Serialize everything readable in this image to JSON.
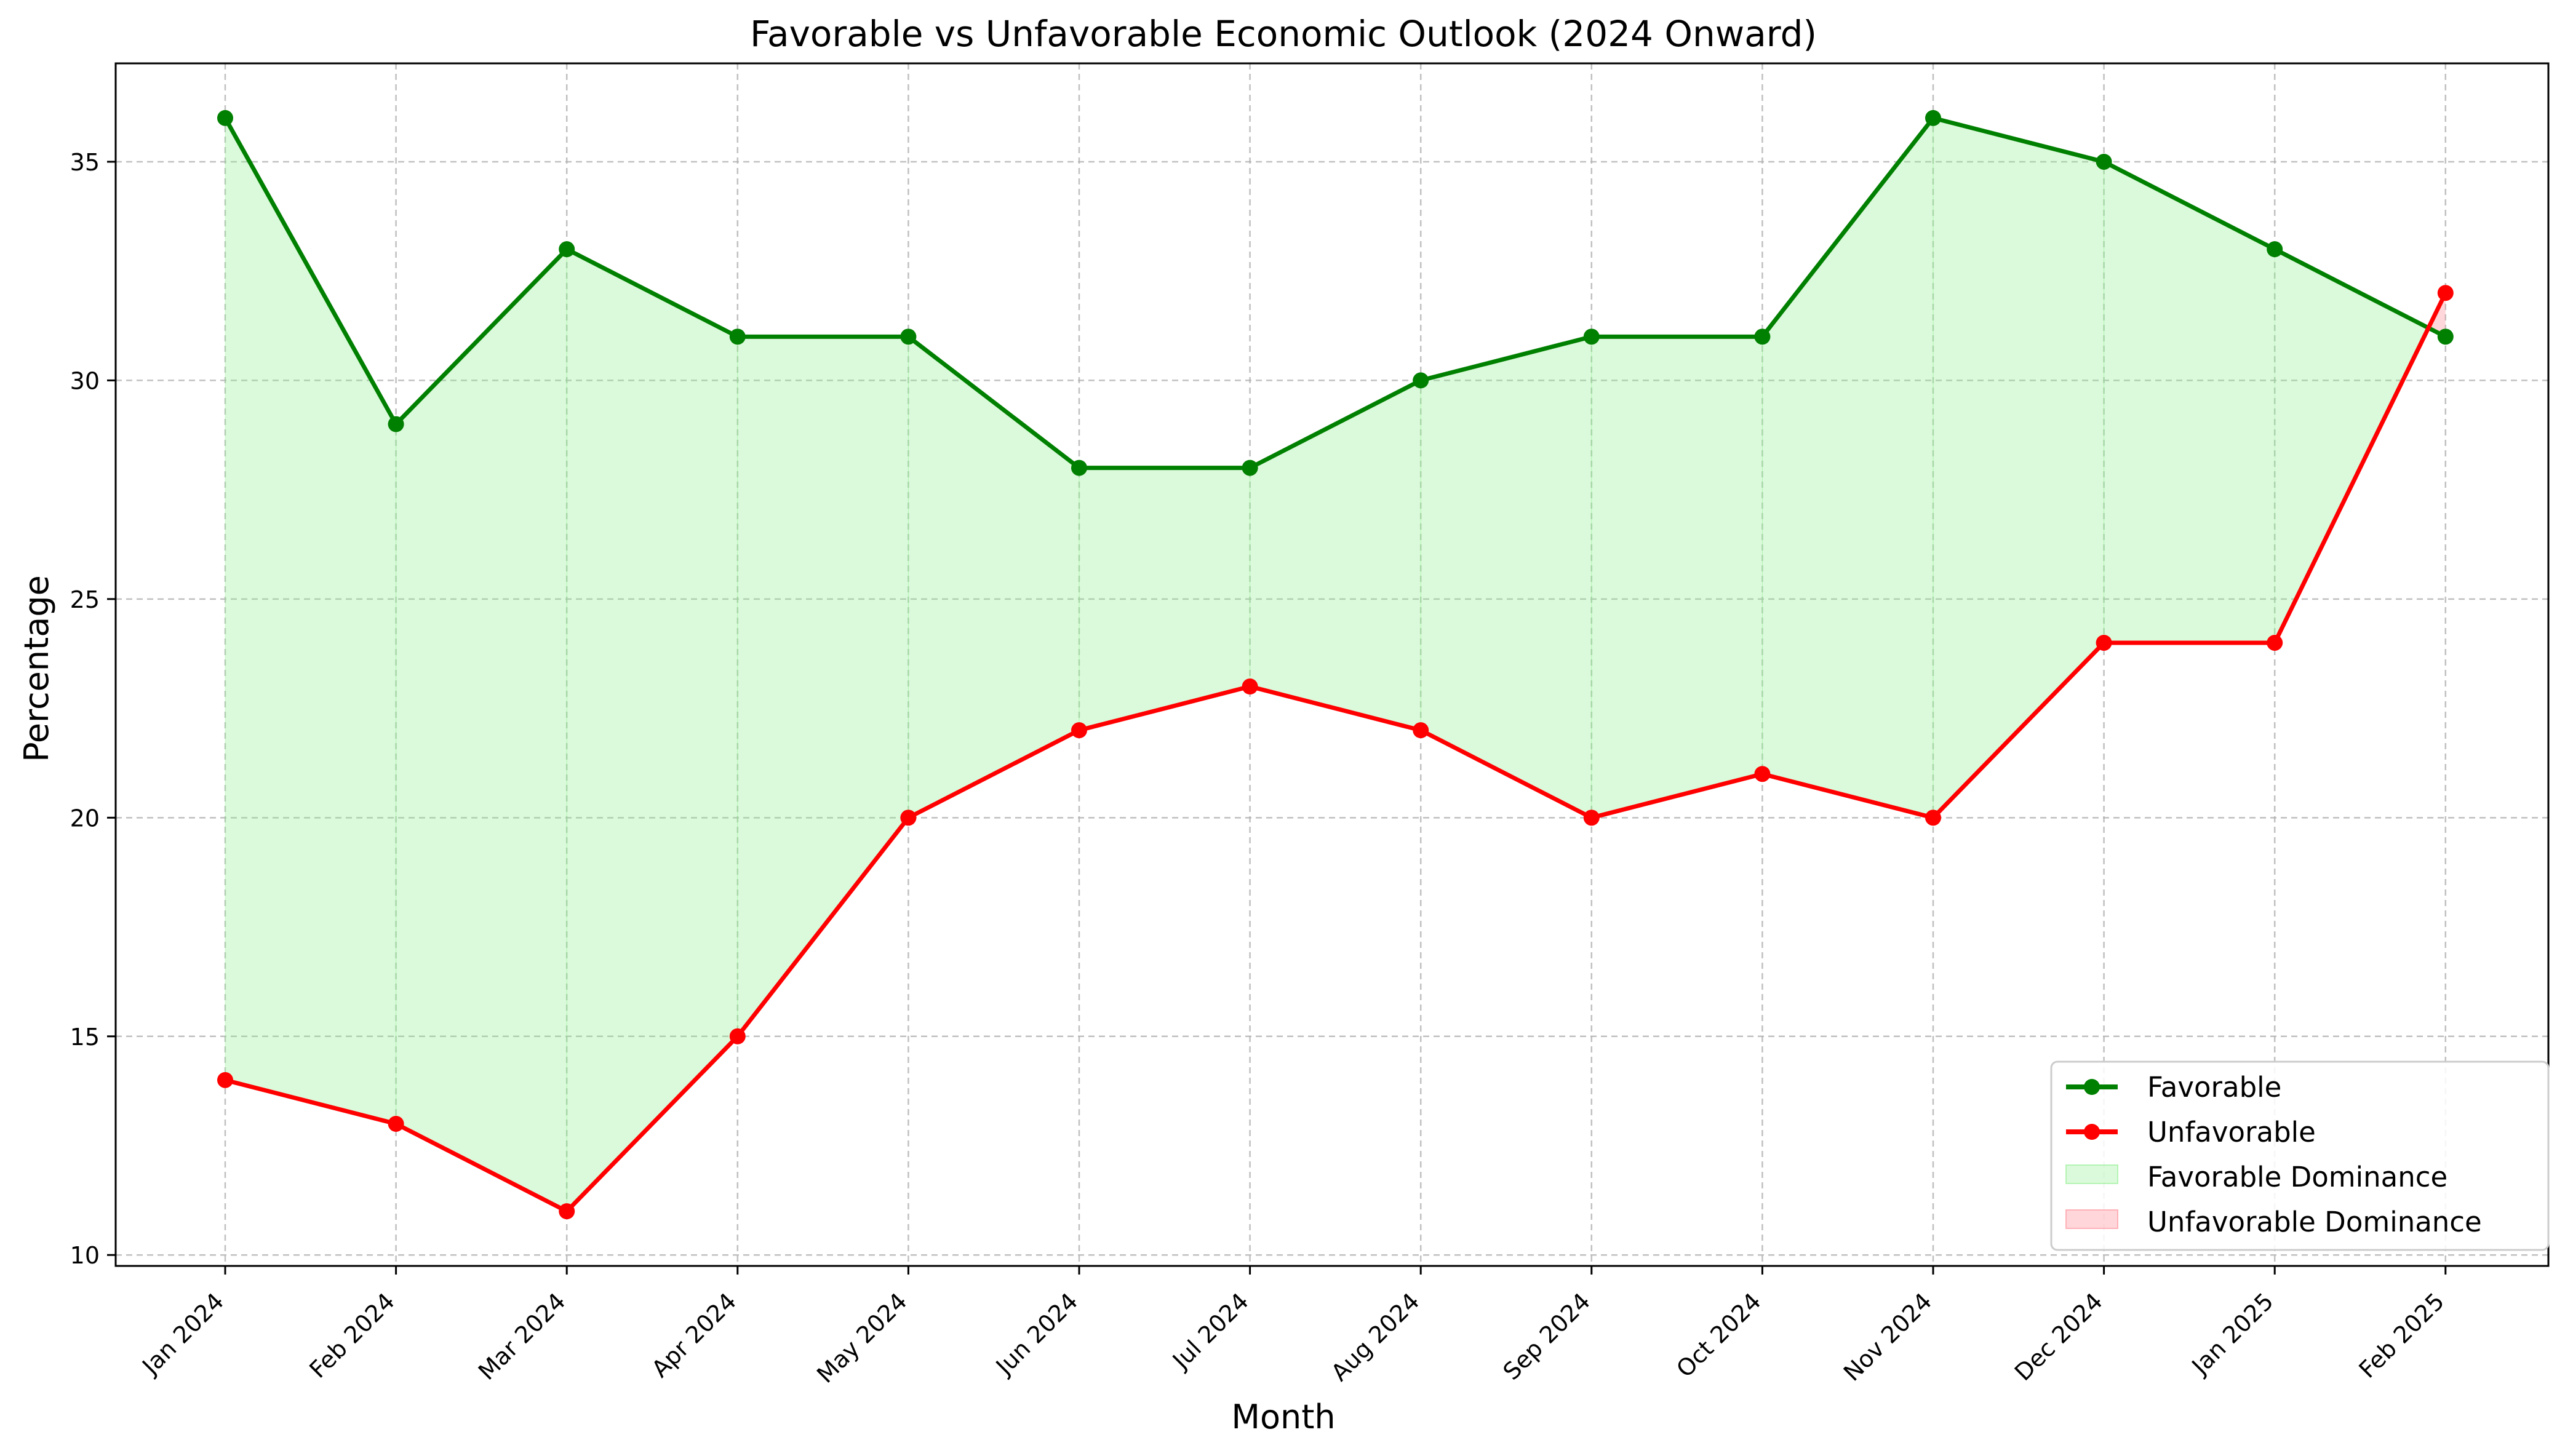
{
  "chart_data": {
    "type": "line",
    "title": "Favorable vs Unfavorable Economic Outlook (2024 Onward)",
    "xlabel": "Month",
    "ylabel": "Percentage",
    "categories": [
      "Jan 2024",
      "Feb 2024",
      "Mar 2024",
      "Apr 2024",
      "May 2024",
      "Jun 2024",
      "Jul 2024",
      "Aug 2024",
      "Sep 2024",
      "Oct 2024",
      "Nov 2024",
      "Dec 2024",
      "Jan 2025",
      "Feb 2025"
    ],
    "series": [
      {
        "name": "Favorable",
        "color": "#008000",
        "values": [
          36,
          29,
          33,
          31,
          31,
          28,
          28,
          30,
          31,
          31,
          36,
          35,
          33,
          31
        ]
      },
      {
        "name": "Unfavorable",
        "color": "#ff0000",
        "values": [
          14,
          13,
          11,
          15,
          20,
          22,
          23,
          22,
          20,
          21,
          20,
          24,
          24,
          32
        ]
      }
    ],
    "fills": [
      {
        "name": "Favorable Dominance",
        "color": "#90ee90",
        "opacity": 0.32
      },
      {
        "name": "Unfavorable Dominance",
        "color": "#ff9aa2",
        "opacity": 0.4
      }
    ],
    "ylim": [
      9.75,
      37.25
    ],
    "yticks": [
      10,
      15,
      20,
      25,
      30,
      35
    ],
    "grid": true,
    "legend_position": "lower-right"
  }
}
